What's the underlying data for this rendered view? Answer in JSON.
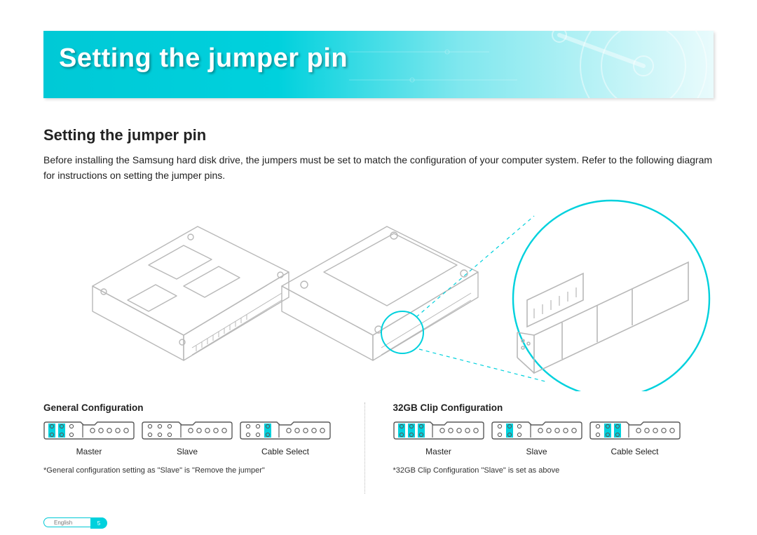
{
  "banner": {
    "title": "Setting the jumper pin",
    "bg_gradient": [
      "#00c9d6",
      "#00d1dd",
      "#7fe7ee",
      "#e9fbfc"
    ],
    "title_color": "#ffffff",
    "title_fontsize": 38
  },
  "section": {
    "heading": "Setting the jumper pin",
    "heading_fontsize": 22,
    "body": "Before installing the Samsung hard disk drive, the jumpers must be set to match the configuration of your computer system. Refer to the following diagram for instructions on setting the jumper pins.",
    "body_fontsize": 14,
    "text_color": "#222222"
  },
  "diagram": {
    "stroke_color": "#b8b8b8",
    "accent_color": "#00d1dd",
    "callout_dash": "4 4",
    "callout_color": "#00d1dd"
  },
  "configs": {
    "divider_color": "#bbbbbb",
    "accent_color": "#00d1dd",
    "block_stroke": "#5a5a5a",
    "pin_fill": "#9a9a9a",
    "left": {
      "title": "General Configuration",
      "items": [
        {
          "label": "Master",
          "jumpers": [
            [
              0,
              3
            ],
            [
              1,
              4
            ]
          ]
        },
        {
          "label": "Slave",
          "jumpers": []
        },
        {
          "label": "Cable Select",
          "jumpers": [
            [
              2,
              5
            ]
          ]
        }
      ],
      "note": "*General configuration setting as \"Slave\" is \"Remove the jumper\""
    },
    "right": {
      "title": "32GB Clip Configuration",
      "items": [
        {
          "label": "Master",
          "jumpers": [
            [
              0,
              3
            ],
            [
              1,
              4
            ],
            [
              2,
              5
            ]
          ]
        },
        {
          "label": "Slave",
          "jumpers": [
            [
              1,
              4
            ]
          ]
        },
        {
          "label": "Cable Select",
          "jumpers": [
            [
              1,
              4
            ],
            [
              2,
              5
            ]
          ]
        }
      ],
      "note": "*32GB Clip Configuration \"Slave\" is set as above"
    }
  },
  "footer": {
    "language": "English",
    "page_num": "5",
    "pill_border": "#00c9d6",
    "pill_fill": "#00d1dd"
  }
}
